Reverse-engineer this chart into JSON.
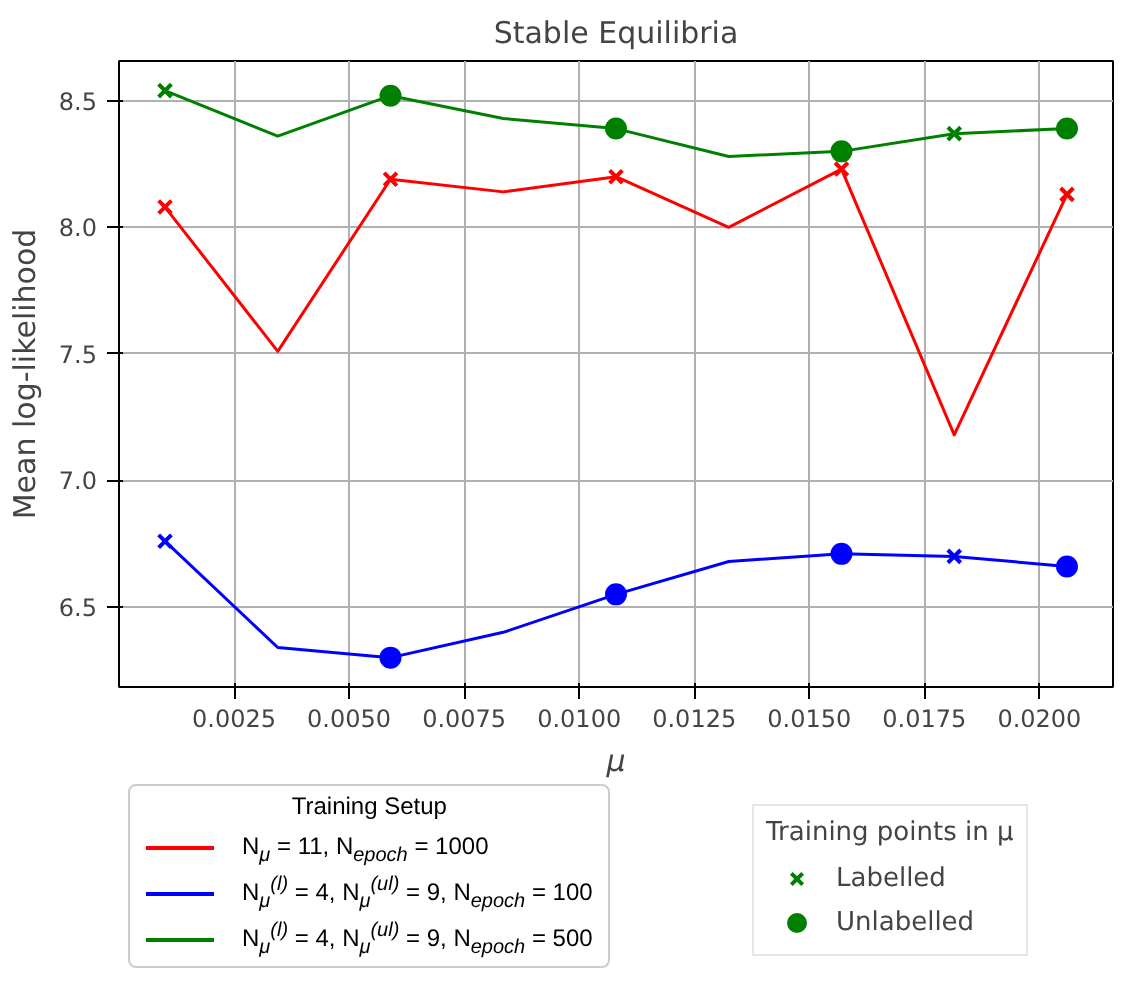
{
  "chart_data": {
    "type": "line",
    "title": "Stable Equilibria",
    "xlabel": "μ",
    "ylabel": "Mean log-likelihood",
    "legend_title": "Training Setup",
    "annotations": [
      "Training points in μ"
    ],
    "x": [
      0.001,
      0.00345,
      0.0059,
      0.00835,
      0.0108,
      0.01325,
      0.0157,
      0.01815,
      0.0206
    ],
    "series": [
      {
        "name": "N$_{μ}$ = 11, N$_{epoch}$ = 1000",
        "color": "#ff0000",
        "values": [
          8.08,
          7.51,
          8.19,
          8.14,
          8.2,
          8.0,
          8.23,
          7.18,
          8.13
        ]
      },
      {
        "name": "N$_{μ}$$^{(l)}$ = 4, N$_{μ}$$^{(ul)}$ = 9, N$_{epoch}$ = 100",
        "color": "#0000ff",
        "values": [
          6.76,
          6.34,
          6.3,
          6.4,
          6.55,
          6.68,
          6.71,
          6.7,
          6.66
        ]
      },
      {
        "name": "N$_{μ}$$^{(l)}$ = 4, N$_{μ}$$^{(ul)}$ = 9, N$_{epoch}$ = 500",
        "color": "#008000",
        "values": [
          8.54,
          8.36,
          8.52,
          8.43,
          8.39,
          8.28,
          8.3,
          8.37,
          8.39
        ]
      },
      {
        "type": "scatter",
        "marker": "cross",
        "color": "#ff0000",
        "values": [
          8.08,
          null,
          8.19,
          null,
          8.2,
          null,
          8.23,
          null,
          8.13
        ]
      },
      {
        "type": "scatter",
        "marker": "cross",
        "color": "#0000ff",
        "values": [
          6.76,
          null,
          null,
          null,
          null,
          null,
          null,
          6.7,
          null
        ]
      },
      {
        "type": "scatter",
        "marker": "circle",
        "color": "#0000ff",
        "values": [
          null,
          null,
          6.3,
          null,
          6.55,
          null,
          6.71,
          null,
          6.66
        ]
      },
      {
        "type": "scatter",
        "marker": "cross",
        "name": "Labelled",
        "color": "#008000",
        "values": [
          8.54,
          null,
          null,
          null,
          null,
          null,
          null,
          8.37,
          null
        ]
      },
      {
        "type": "scatter",
        "marker": "circle",
        "name": "Unlabelled",
        "color": "#008000",
        "values": [
          null,
          null,
          8.52,
          null,
          8.39,
          null,
          8.3,
          null,
          8.39
        ]
      }
    ],
    "xlim": [
      0.0,
      0.0216
    ],
    "ylim": [
      6.184,
      8.657
    ],
    "xticks": [
      {
        "value": 0.0025,
        "label": "0.0025"
      },
      {
        "value": 0.005,
        "label": "0.0050"
      },
      {
        "value": 0.0075,
        "label": "0.0075"
      },
      {
        "value": 0.01,
        "label": "0.0100"
      },
      {
        "value": 0.0125,
        "label": "0.0125"
      },
      {
        "value": 0.015,
        "label": "0.0150"
      },
      {
        "value": 0.0175,
        "label": "0.0175"
      },
      {
        "value": 0.02,
        "label": "0.0200"
      }
    ],
    "yticks": [
      {
        "value": 6.5,
        "label": "6.5"
      },
      {
        "value": 7.0,
        "label": "7.0"
      },
      {
        "value": 7.5,
        "label": "7.5"
      },
      {
        "value": 8.0,
        "label": "8.0"
      },
      {
        "value": 8.5,
        "label": "8.5"
      }
    ],
    "grid": true,
    "legend": "bottom"
  }
}
